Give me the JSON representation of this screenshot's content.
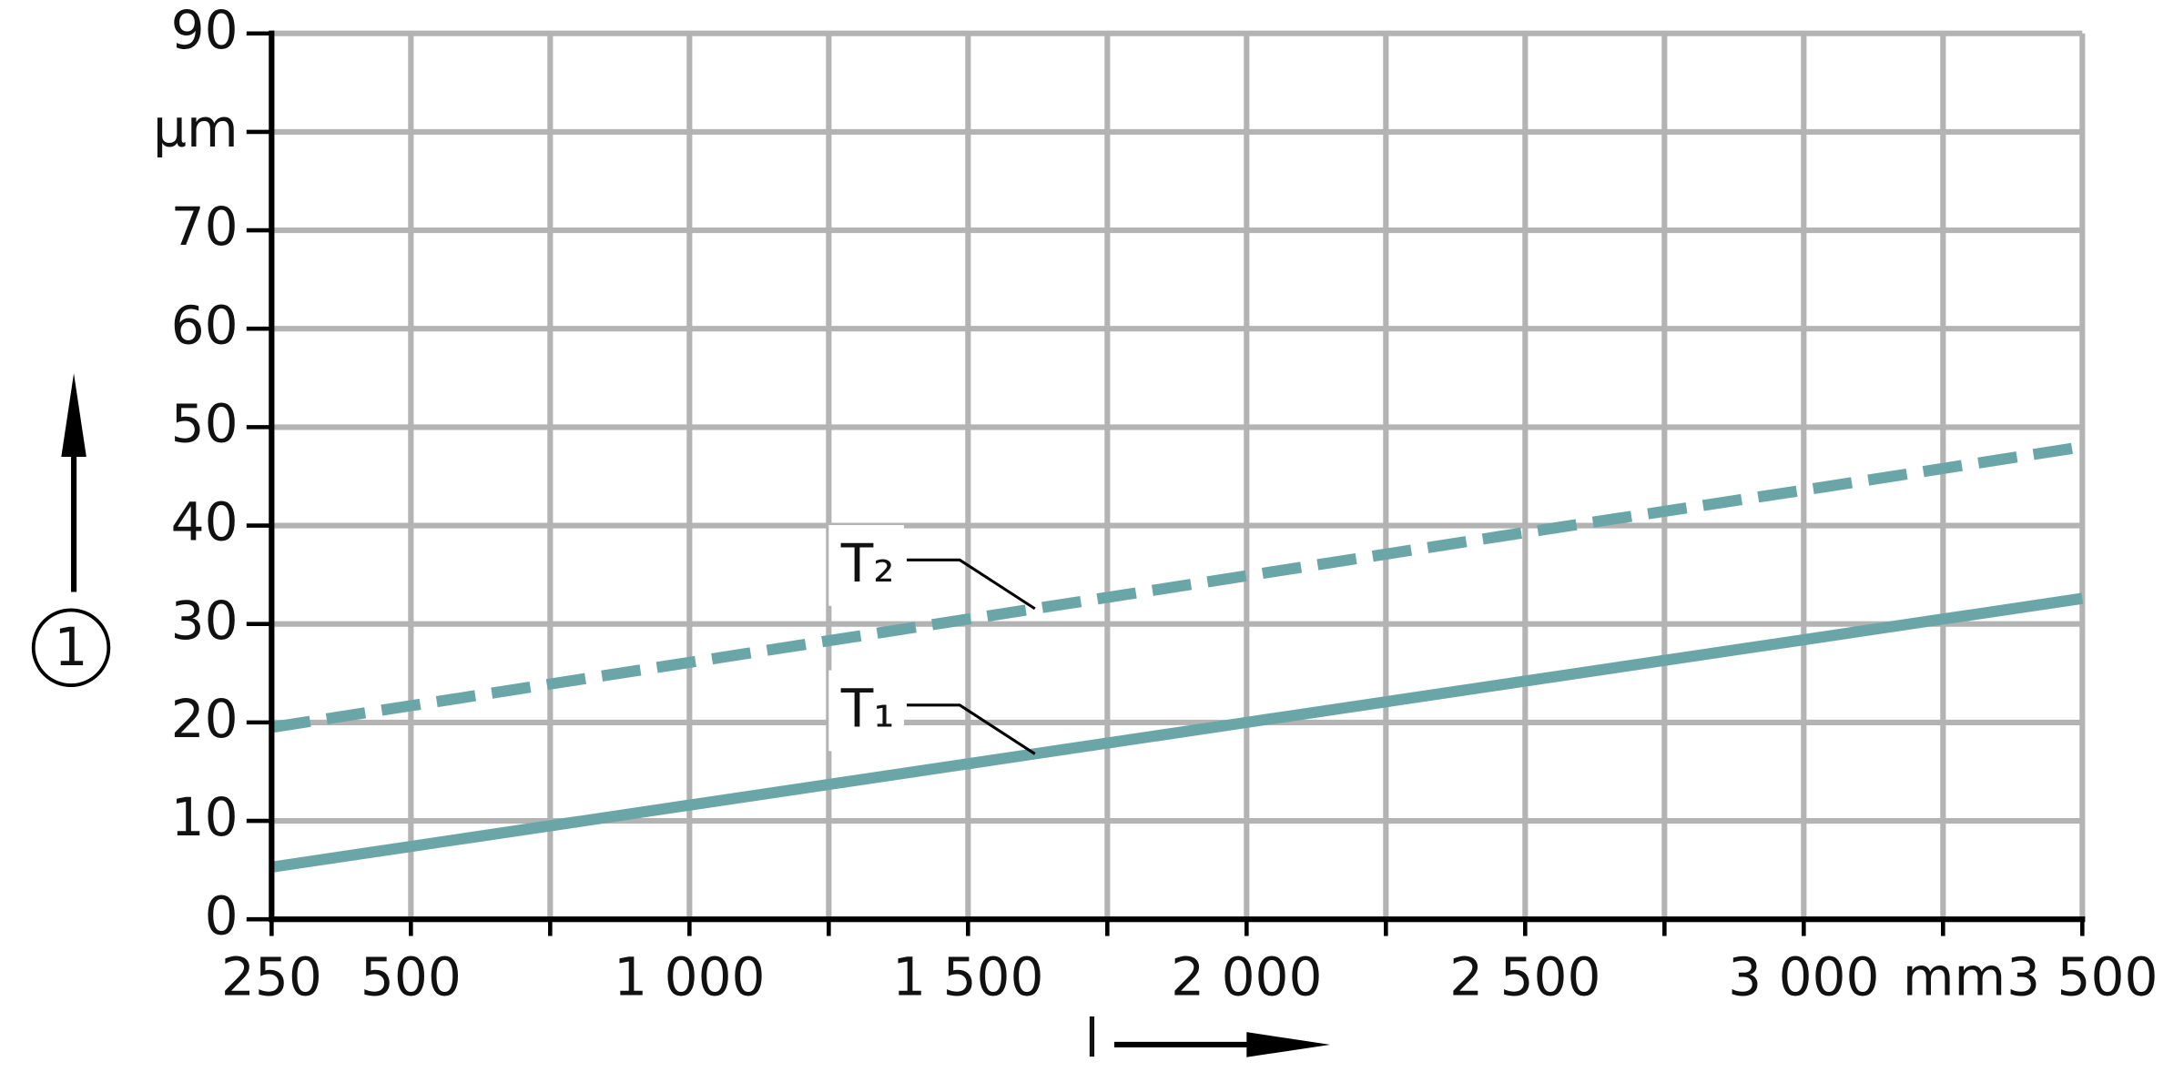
{
  "chart_data": {
    "type": "line",
    "x_label": "l",
    "y_label": "1",
    "x_unit": "mm",
    "x": [
      250,
      500,
      1000,
      1500,
      2000,
      2500,
      3000,
      3500
    ],
    "series": [
      {
        "name": "T₁",
        "color": "#6aa6a8",
        "dashed": false,
        "values": [
          5.3,
          7.4,
          11.6,
          15.8,
          20,
          24.2,
          28.4,
          32.6
        ]
      },
      {
        "name": "T₂",
        "color": "#6aa6a8",
        "dashed": true,
        "values": [
          19.5,
          21.7,
          26.1,
          30.5,
          34.9,
          39.3,
          43.6,
          48
        ]
      }
    ],
    "xlim": [
      250,
      3500
    ],
    "ylim": [
      0,
      90
    ],
    "xticks": [
      250,
      500,
      {
        "value": 1000,
        "label": "1 000"
      },
      {
        "value": 1500,
        "label": "1 500"
      },
      {
        "value": 2000,
        "label": "2 000"
      },
      {
        "value": 2500,
        "label": "2 500"
      },
      {
        "value": 3000,
        "label": "3 000"
      },
      {
        "value": 3500,
        "label": "3 500"
      }
    ],
    "minor_xticks": [
      750,
      1250,
      1750,
      2250,
      2750,
      3250
    ],
    "yticks": [
      0,
      10,
      20,
      30,
      40,
      50,
      60,
      70,
      {
        "value": 80,
        "label": "µm"
      },
      90
    ],
    "grid": true
  }
}
